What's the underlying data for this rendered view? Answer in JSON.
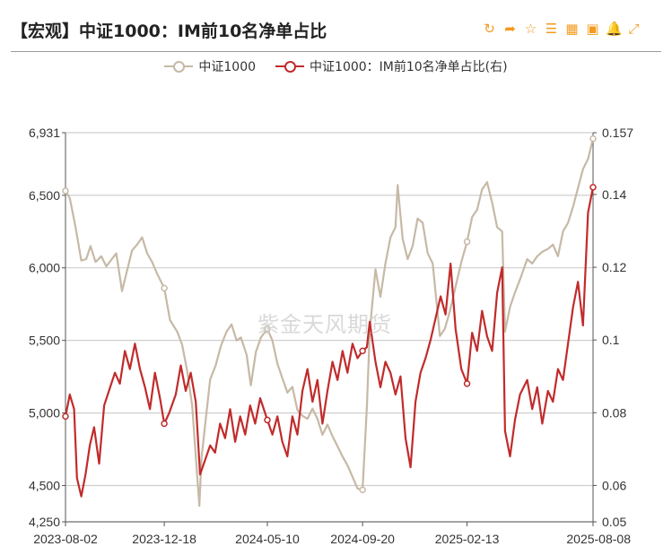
{
  "header": {
    "title": "【宏观】中证1000：IM前10名净单占比"
  },
  "toolbar": {
    "refresh": "refresh-icon",
    "share": "share-icon",
    "favorite": "star-icon",
    "list": "list-icon",
    "table": "table-icon",
    "image": "image-icon",
    "alert": "bell-icon",
    "fullscreen": "fullscreen-icon",
    "color": "#f39a1e"
  },
  "watermark": "紫金天风期货",
  "chart_data": {
    "type": "line",
    "title": "【宏观】中证1000：IM前10名净单占比",
    "x_ticks": [
      "2023-08-02",
      "2023-12-18",
      "2024-05-10",
      "2024-09-20",
      "2025-02-13",
      "2025-08-08"
    ],
    "x_range": [
      "2023-08-02",
      "2025-08-08"
    ],
    "y_left": {
      "range": [
        4250,
        6931
      ],
      "ticks": [
        "6,931",
        "6,500",
        "6,000",
        "5,500",
        "5,000",
        "4,500",
        "4,250"
      ]
    },
    "y_right": {
      "range": [
        0.05,
        0.157
      ],
      "ticks": [
        "0.157",
        "0.14",
        "0.12",
        "0.1",
        "0.08",
        "0.06",
        "0.05"
      ]
    },
    "legend_position": "top-center",
    "grid": "horizontal",
    "series": [
      {
        "name": "中证1000",
        "axis": "left",
        "color": "#c6b9a6",
        "points": [
          [
            "2023-08-02",
            6530
          ],
          [
            "2023-08-08",
            6480
          ],
          [
            "2023-08-16",
            6280
          ],
          [
            "2023-08-24",
            6050
          ],
          [
            "2023-08-31",
            6060
          ],
          [
            "2023-09-06",
            6150
          ],
          [
            "2023-09-13",
            6040
          ],
          [
            "2023-09-21",
            6080
          ],
          [
            "2023-09-28",
            6010
          ],
          [
            "2023-10-12",
            6100
          ],
          [
            "2023-10-20",
            5840
          ],
          [
            "2023-10-27",
            5980
          ],
          [
            "2023-11-03",
            6120
          ],
          [
            "2023-11-10",
            6160
          ],
          [
            "2023-11-17",
            6210
          ],
          [
            "2023-11-24",
            6100
          ],
          [
            "2023-12-01",
            6040
          ],
          [
            "2023-12-08",
            5960
          ],
          [
            "2023-12-18",
            5860
          ],
          [
            "2023-12-26",
            5640
          ],
          [
            "2024-01-05",
            5560
          ],
          [
            "2024-01-12",
            5470
          ],
          [
            "2024-01-19",
            5290
          ],
          [
            "2024-01-26",
            5050
          ],
          [
            "2024-02-05",
            4360
          ],
          [
            "2024-02-08",
            4690
          ],
          [
            "2024-02-20",
            5230
          ],
          [
            "2024-02-28",
            5330
          ],
          [
            "2024-03-06",
            5460
          ],
          [
            "2024-03-14",
            5560
          ],
          [
            "2024-03-21",
            5610
          ],
          [
            "2024-03-28",
            5500
          ],
          [
            "2024-04-03",
            5520
          ],
          [
            "2024-04-11",
            5400
          ],
          [
            "2024-04-17",
            5190
          ],
          [
            "2024-04-24",
            5420
          ],
          [
            "2024-05-01",
            5520
          ],
          [
            "2024-05-10",
            5580
          ],
          [
            "2024-05-17",
            5500
          ],
          [
            "2024-05-24",
            5340
          ],
          [
            "2024-05-31",
            5240
          ],
          [
            "2024-06-07",
            5140
          ],
          [
            "2024-06-14",
            5180
          ],
          [
            "2024-06-21",
            5020
          ],
          [
            "2024-06-28",
            4980
          ],
          [
            "2024-07-05",
            4960
          ],
          [
            "2024-07-12",
            5030
          ],
          [
            "2024-07-19",
            4960
          ],
          [
            "2024-07-26",
            4850
          ],
          [
            "2024-08-02",
            4920
          ],
          [
            "2024-08-09",
            4840
          ],
          [
            "2024-08-16",
            4770
          ],
          [
            "2024-08-23",
            4700
          ],
          [
            "2024-08-30",
            4640
          ],
          [
            "2024-09-06",
            4560
          ],
          [
            "2024-09-13",
            4480
          ],
          [
            "2024-09-20",
            4470
          ],
          [
            "2024-09-26",
            5040
          ],
          [
            "2024-09-30",
            5560
          ],
          [
            "2024-10-08",
            5990
          ],
          [
            "2024-10-15",
            5800
          ],
          [
            "2024-10-22",
            6030
          ],
          [
            "2024-10-29",
            6210
          ],
          [
            "2024-11-05",
            6280
          ],
          [
            "2024-11-08",
            6570
          ],
          [
            "2024-11-15",
            6200
          ],
          [
            "2024-11-22",
            6060
          ],
          [
            "2024-11-29",
            6150
          ],
          [
            "2024-12-06",
            6340
          ],
          [
            "2024-12-13",
            6310
          ],
          [
            "2024-12-20",
            6100
          ],
          [
            "2024-12-27",
            6030
          ],
          [
            "2025-01-06",
            5530
          ],
          [
            "2025-01-13",
            5580
          ],
          [
            "2025-01-20",
            5700
          ],
          [
            "2025-01-27",
            5850
          ],
          [
            "2025-02-05",
            6040
          ],
          [
            "2025-02-13",
            6180
          ],
          [
            "2025-02-20",
            6350
          ],
          [
            "2025-02-27",
            6400
          ],
          [
            "2025-03-06",
            6540
          ],
          [
            "2025-03-13",
            6590
          ],
          [
            "2025-03-20",
            6450
          ],
          [
            "2025-03-27",
            6280
          ],
          [
            "2025-04-03",
            6250
          ],
          [
            "2025-04-07",
            5560
          ],
          [
            "2025-04-14",
            5730
          ],
          [
            "2025-04-21",
            5830
          ],
          [
            "2025-04-28",
            5920
          ],
          [
            "2025-05-08",
            6060
          ],
          [
            "2025-05-15",
            6030
          ],
          [
            "2025-05-22",
            6080
          ],
          [
            "2025-05-29",
            6110
          ],
          [
            "2025-06-06",
            6130
          ],
          [
            "2025-06-13",
            6160
          ],
          [
            "2025-06-20",
            6080
          ],
          [
            "2025-06-27",
            6250
          ],
          [
            "2025-07-04",
            6310
          ],
          [
            "2025-07-11",
            6420
          ],
          [
            "2025-07-18",
            6550
          ],
          [
            "2025-07-25",
            6680
          ],
          [
            "2025-08-01",
            6750
          ],
          [
            "2025-08-08",
            6890
          ]
        ]
      },
      {
        "name": "中证1000：IM前10名净单占比(右)",
        "axis": "right",
        "color": "#c12b2b",
        "points": [
          [
            "2023-08-02",
            0.079
          ],
          [
            "2023-08-08",
            0.085
          ],
          [
            "2023-08-14",
            0.081
          ],
          [
            "2023-08-18",
            0.062
          ],
          [
            "2023-08-24",
            0.057
          ],
          [
            "2023-08-30",
            0.063
          ],
          [
            "2023-09-05",
            0.071
          ],
          [
            "2023-09-11",
            0.076
          ],
          [
            "2023-09-18",
            0.066
          ],
          [
            "2023-09-25",
            0.082
          ],
          [
            "2023-10-10",
            0.091
          ],
          [
            "2023-10-17",
            0.088
          ],
          [
            "2023-10-24",
            0.097
          ],
          [
            "2023-10-31",
            0.092
          ],
          [
            "2023-11-07",
            0.099
          ],
          [
            "2023-11-14",
            0.092
          ],
          [
            "2023-11-21",
            0.087
          ],
          [
            "2023-11-28",
            0.081
          ],
          [
            "2023-12-05",
            0.091
          ],
          [
            "2023-12-12",
            0.084
          ],
          [
            "2023-12-18",
            0.077
          ],
          [
            "2023-12-25",
            0.08
          ],
          [
            "2024-01-03",
            0.085
          ],
          [
            "2024-01-10",
            0.093
          ],
          [
            "2024-01-17",
            0.086
          ],
          [
            "2024-01-24",
            0.091
          ],
          [
            "2024-01-31",
            0.083
          ],
          [
            "2024-02-06",
            0.063
          ],
          [
            "2024-02-20",
            0.071
          ],
          [
            "2024-02-27",
            0.069
          ],
          [
            "2024-03-05",
            0.077
          ],
          [
            "2024-03-12",
            0.073
          ],
          [
            "2024-03-19",
            0.081
          ],
          [
            "2024-03-26",
            0.072
          ],
          [
            "2024-04-02",
            0.079
          ],
          [
            "2024-04-09",
            0.074
          ],
          [
            "2024-04-16",
            0.082
          ],
          [
            "2024-04-23",
            0.077
          ],
          [
            "2024-04-30",
            0.084
          ],
          [
            "2024-05-10",
            0.078
          ],
          [
            "2024-05-17",
            0.074
          ],
          [
            "2024-05-24",
            0.079
          ],
          [
            "2024-05-31",
            0.072
          ],
          [
            "2024-06-07",
            0.068
          ],
          [
            "2024-06-14",
            0.079
          ],
          [
            "2024-06-21",
            0.074
          ],
          [
            "2024-06-28",
            0.086
          ],
          [
            "2024-07-05",
            0.092
          ],
          [
            "2024-07-12",
            0.083
          ],
          [
            "2024-07-19",
            0.089
          ],
          [
            "2024-07-26",
            0.077
          ],
          [
            "2024-08-02",
            0.086
          ],
          [
            "2024-08-09",
            0.094
          ],
          [
            "2024-08-16",
            0.089
          ],
          [
            "2024-08-23",
            0.097
          ],
          [
            "2024-08-30",
            0.091
          ],
          [
            "2024-09-06",
            0.099
          ],
          [
            "2024-09-13",
            0.095
          ],
          [
            "2024-09-20",
            0.097
          ],
          [
            "2024-09-26",
            0.098
          ],
          [
            "2024-09-30",
            0.105
          ],
          [
            "2024-10-08",
            0.094
          ],
          [
            "2024-10-15",
            0.087
          ],
          [
            "2024-10-22",
            0.094
          ],
          [
            "2024-10-29",
            0.091
          ],
          [
            "2024-11-05",
            0.085
          ],
          [
            "2024-11-12",
            0.09
          ],
          [
            "2024-11-19",
            0.073
          ],
          [
            "2024-11-26",
            0.065
          ],
          [
            "2024-12-03",
            0.083
          ],
          [
            "2024-12-10",
            0.091
          ],
          [
            "2024-12-17",
            0.095
          ],
          [
            "2024-12-24",
            0.1
          ],
          [
            "2024-12-31",
            0.106
          ],
          [
            "2025-01-07",
            0.112
          ],
          [
            "2025-01-14",
            0.107
          ],
          [
            "2025-01-21",
            0.121
          ],
          [
            "2025-01-28",
            0.103
          ],
          [
            "2025-02-05",
            0.092
          ],
          [
            "2025-02-13",
            0.088
          ],
          [
            "2025-02-20",
            0.102
          ],
          [
            "2025-02-27",
            0.097
          ],
          [
            "2025-03-06",
            0.108
          ],
          [
            "2025-03-13",
            0.101
          ],
          [
            "2025-03-20",
            0.097
          ],
          [
            "2025-03-27",
            0.113
          ],
          [
            "2025-04-03",
            0.12
          ],
          [
            "2025-04-07",
            0.075
          ],
          [
            "2025-04-14",
            0.068
          ],
          [
            "2025-04-21",
            0.078
          ],
          [
            "2025-04-28",
            0.085
          ],
          [
            "2025-05-08",
            0.089
          ],
          [
            "2025-05-15",
            0.081
          ],
          [
            "2025-05-22",
            0.087
          ],
          [
            "2025-05-29",
            0.077
          ],
          [
            "2025-06-06",
            0.086
          ],
          [
            "2025-06-13",
            0.083
          ],
          [
            "2025-06-20",
            0.092
          ],
          [
            "2025-06-27",
            0.089
          ],
          [
            "2025-07-04",
            0.099
          ],
          [
            "2025-07-11",
            0.109
          ],
          [
            "2025-07-18",
            0.116
          ],
          [
            "2025-07-25",
            0.104
          ],
          [
            "2025-08-01",
            0.135
          ],
          [
            "2025-08-08",
            0.142
          ]
        ]
      }
    ]
  }
}
